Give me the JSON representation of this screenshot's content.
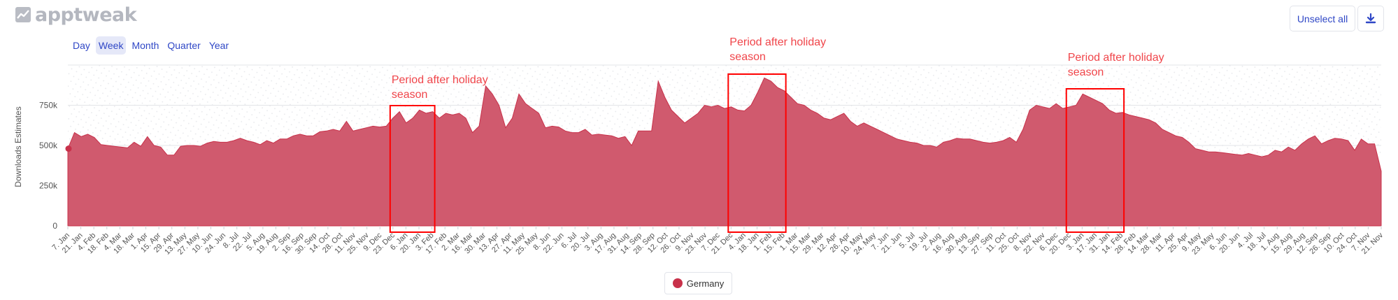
{
  "brand": {
    "name": "apptweak",
    "icon": "trend-chart-icon"
  },
  "periods": {
    "items": [
      {
        "label": "Day",
        "active": false
      },
      {
        "label": "Week",
        "active": true
      },
      {
        "label": "Month",
        "active": false
      },
      {
        "label": "Quarter",
        "active": false
      },
      {
        "label": "Year",
        "active": false
      }
    ]
  },
  "toolbar": {
    "unselect_label": "Unselect all",
    "download_icon": "download-icon"
  },
  "legend": {
    "label": "Germany",
    "color": "#c8314a"
  },
  "colors": {
    "area_fill": "#d05a6e",
    "highlight_box": "#ff0000",
    "annotation_text": "#f0454a",
    "dot": "#c8314a"
  },
  "chart_data": {
    "type": "area",
    "ylabel": "Downloads Estimates",
    "ylim": [
      0,
      1000000
    ],
    "yticks": [
      {
        "value": 0,
        "label": "0"
      },
      {
        "value": 250000,
        "label": "250k"
      },
      {
        "value": 500000,
        "label": "500k"
      },
      {
        "value": 750000,
        "label": "750k"
      }
    ],
    "xtick_labels": [
      "7. Jan",
      "21. Jan",
      "4. Feb",
      "18. Feb",
      "4. Mar",
      "18. Mar",
      "1. Apr",
      "15. Apr",
      "29. Apr",
      "13. May",
      "27. May",
      "10. Jun",
      "24. Jun",
      "8. Jul",
      "22. Jul",
      "5. Aug",
      "19. Aug",
      "2. Sep",
      "16. Sep",
      "30. Sep",
      "14. Oct",
      "28. Oct",
      "11. Nov",
      "25. Nov",
      "9. Dec",
      "23. Dec",
      "6. Jan",
      "20. Jan",
      "3. Feb",
      "17. Feb",
      "2. Mar",
      "16. Mar",
      "30. Mar",
      "13. Apr",
      "27. Apr",
      "11. May",
      "25. May",
      "8. Jun",
      "22. Jun",
      "6. Jul",
      "20. Jul",
      "3. Aug",
      "17. Aug",
      "31. Aug",
      "14. Sep",
      "28. Sep",
      "12. Oct",
      "26. Oct",
      "9. Nov",
      "23. Nov",
      "7. Dec",
      "21. Dec",
      "4. Jan",
      "18. Jan",
      "1. Feb",
      "15. Feb",
      "1. Mar",
      "15. Mar",
      "29. Mar",
      "12. Apr",
      "26. Apr",
      "10. May",
      "24. May",
      "7. Jun",
      "21. Jun",
      "5. Jul",
      "19. Jul",
      "2. Aug",
      "16. Aug",
      "30. Aug",
      "13. Sep",
      "27. Sep",
      "11. Oct",
      "25. Oct",
      "8. Nov",
      "22. Nov",
      "6. Dec",
      "20. Dec",
      "3. Jan",
      "17. Jan",
      "31. Jan",
      "14. Feb",
      "28. Feb",
      "14. Mar",
      "28. Mar",
      "11. Apr",
      "25. Apr",
      "9. May",
      "23. May",
      "6. Jun",
      "20. Jun",
      "4. Jul",
      "18. Jul",
      "1. Aug",
      "15. Aug",
      "29. Aug",
      "12. Sep",
      "26. Sep",
      "10. Oct",
      "24. Oct",
      "7. Nov",
      "21. Nov"
    ],
    "series": [
      {
        "name": "Germany",
        "values": [
          480000,
          580000,
          555000,
          570000,
          550000,
          505000,
          500000,
          495000,
          490000,
          485000,
          520000,
          495000,
          555000,
          500000,
          490000,
          440000,
          440000,
          495000,
          500000,
          500000,
          495000,
          515000,
          525000,
          520000,
          520000,
          530000,
          545000,
          530000,
          520000,
          505000,
          530000,
          515000,
          540000,
          540000,
          560000,
          570000,
          560000,
          560000,
          585000,
          590000,
          600000,
          590000,
          650000,
          590000,
          600000,
          610000,
          620000,
          615000,
          620000,
          670000,
          710000,
          640000,
          670000,
          720000,
          700000,
          710000,
          670000,
          700000,
          690000,
          700000,
          670000,
          580000,
          620000,
          870000,
          820000,
          750000,
          610000,
          670000,
          820000,
          760000,
          730000,
          700000,
          610000,
          620000,
          615000,
          590000,
          580000,
          580000,
          600000,
          565000,
          570000,
          565000,
          560000,
          545000,
          555000,
          500000,
          590000,
          590000,
          590000,
          900000,
          800000,
          720000,
          680000,
          640000,
          670000,
          700000,
          750000,
          740000,
          750000,
          730000,
          740000,
          720000,
          715000,
          750000,
          830000,
          920000,
          900000,
          860000,
          840000,
          800000,
          760000,
          750000,
          720000,
          700000,
          670000,
          660000,
          680000,
          700000,
          650000,
          620000,
          640000,
          620000,
          600000,
          580000,
          560000,
          540000,
          530000,
          520000,
          515000,
          500000,
          500000,
          490000,
          520000,
          530000,
          545000,
          540000,
          540000,
          530000,
          520000,
          515000,
          520000,
          530000,
          550000,
          520000,
          600000,
          720000,
          750000,
          740000,
          730000,
          760000,
          730000,
          740000,
          750000,
          820000,
          800000,
          780000,
          760000,
          720000,
          700000,
          705000,
          690000,
          680000,
          670000,
          660000,
          640000,
          600000,
          580000,
          560000,
          550000,
          520000,
          480000,
          470000,
          460000,
          460000,
          455000,
          450000,
          445000,
          440000,
          450000,
          440000,
          430000,
          440000,
          470000,
          460000,
          490000,
          470000,
          510000,
          540000,
          560000,
          510000,
          530000,
          545000,
          540000,
          530000,
          470000,
          540000,
          510000,
          510000,
          340000
        ]
      }
    ],
    "highlights": [
      {
        "label": "Period after holiday season",
        "from_tick": "23. Dec",
        "to_tick": "3. Feb"
      },
      {
        "label": "Period after holiday season",
        "from_tick": "21. Dec",
        "to_tick": "15. Feb"
      },
      {
        "label": "Period after holiday season",
        "from_tick": "20. Dec",
        "to_tick": "14. Feb"
      }
    ],
    "grid": true,
    "legend": "bottom-center"
  }
}
